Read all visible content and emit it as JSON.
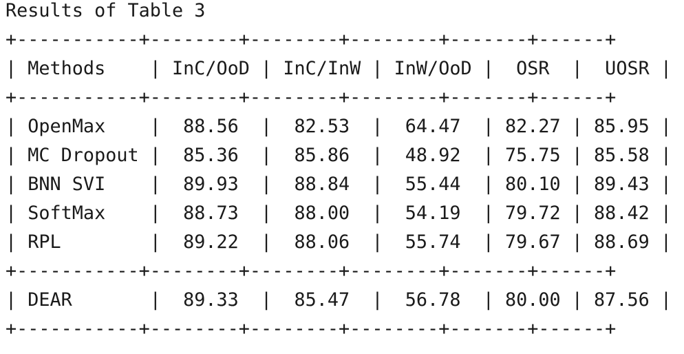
{
  "title": "Results of Table 3",
  "table": {
    "border": "+-----------+--------+--------+--------+-------+------+",
    "header": "| Methods    | InC/OoD | InC/InW | InW/OoD |  OSR  |  UOSR |",
    "rows": [
      "| OpenMax    |  88.56  |  82.53  |  64.47  | 82.27 | 85.95 |",
      "| MC Dropout |  85.36  |  85.86  |  48.92  | 75.75 | 85.58 |",
      "| BNN SVI    |  89.93  |  88.84  |  55.44  | 80.10 | 89.43 |",
      "| SoftMax    |  88.73  |  88.00  |  54.19  | 79.72 | 88.42 |",
      "| RPL        |  89.22  |  88.06  |  55.74  | 79.67 | 88.69 |"
    ],
    "footer_row": "| DEAR       |  89.33  |  85.47  |  56.78  | 80.00 | 87.56 |"
  }
}
